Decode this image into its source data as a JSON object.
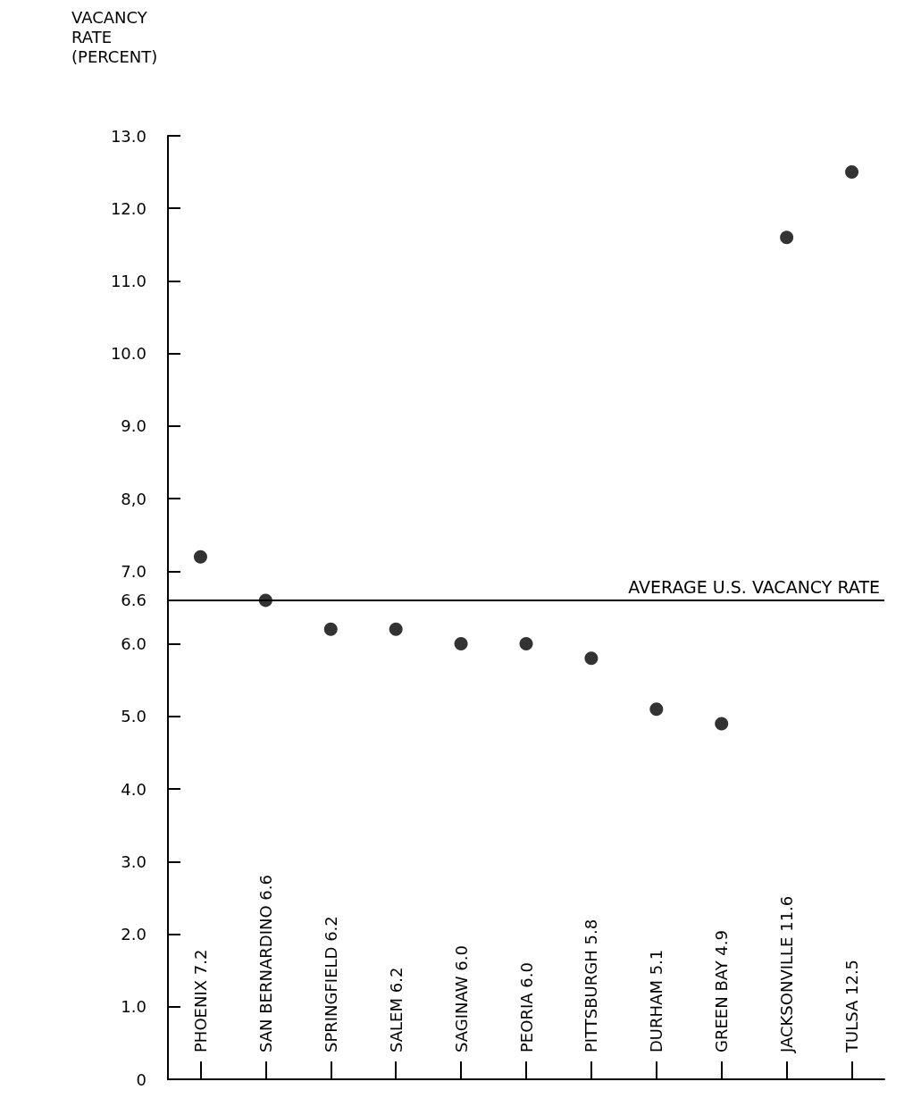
{
  "chart_data": {
    "type": "scatter",
    "ylabel": "VACANCY RATE (PERCENT)",
    "categories": [
      "PHOENIX 7.2",
      "SAN BERNARDINO 6.6",
      "SPRINGFIELD 6.2",
      "SALEM 6.2",
      "SAGINAW 6.0",
      "PEORIA 6.0",
      "PITTSBURGH 5.8",
      "DURHAM 5.1",
      "GREEN BAY 4.9",
      "JACKSONVILLE 11.6",
      "TULSA 12.5"
    ],
    "series": [
      {
        "color": "#000000",
        "values": [
          7.2,
          6.6,
          6.2,
          6.2,
          6.0,
          6.0,
          5.8,
          5.1,
          4.9,
          11.6,
          12.5
        ]
      }
    ],
    "ylim": [
      0,
      13
    ],
    "yticks": [
      0,
      {
        "value": 1,
        "label": "1.0"
      },
      {
        "value": 2,
        "label": "2.0"
      },
      {
        "value": 3,
        "label": "3.0"
      },
      {
        "value": 4,
        "label": "4.0"
      },
      {
        "value": 5,
        "label": "5.0"
      },
      {
        "value": 6,
        "label": "6.0"
      },
      {
        "value": 6.6,
        "label": "6.6"
      },
      {
        "value": 7,
        "label": "7.0"
      },
      {
        "value": 8,
        "label": "8,0"
      },
      {
        "value": 9,
        "label": "9.0"
      },
      {
        "value": 10,
        "label": "10.0"
      },
      {
        "value": 11,
        "label": "11.0"
      },
      {
        "value": 12,
        "label": "12.0"
      },
      {
        "value": 13,
        "label": "13.0"
      }
    ],
    "ref_lines": [
      {
        "axis": "y",
        "value": 6.6,
        "label": "AVERAGE U.S. VACANCY RATE",
        "color": "#000000"
      }
    ],
    "marker": "circle",
    "grid": false
  }
}
